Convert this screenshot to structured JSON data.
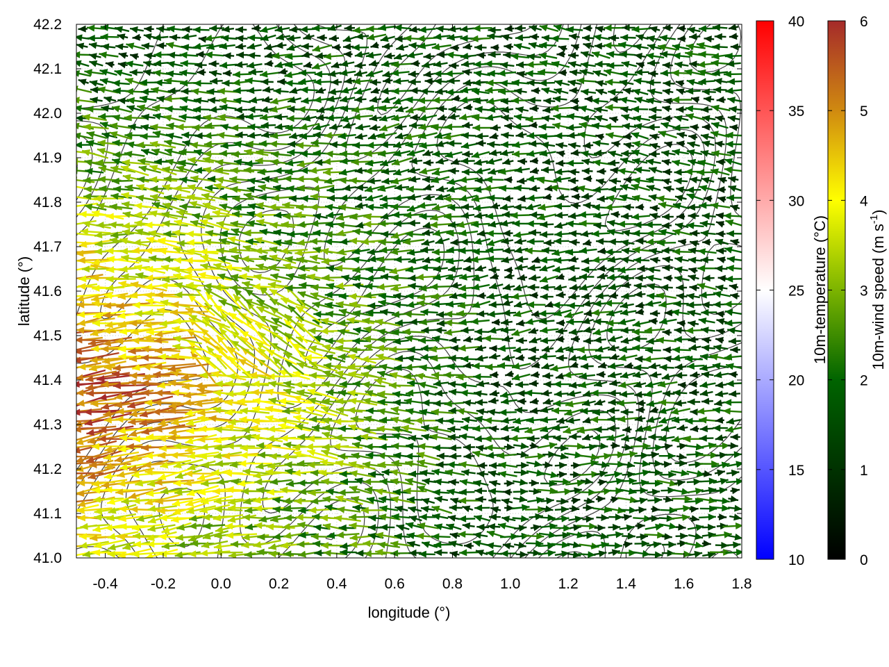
{
  "chart_data": {
    "type": "vector-field",
    "xlabel": "longitude (°)",
    "ylabel": "latitude (°)",
    "xlim": [
      -0.5,
      1.8
    ],
    "ylim": [
      41.0,
      42.2
    ],
    "x_ticks": [
      "-0.4",
      "-0.2",
      "0.0",
      "0.2",
      "0.4",
      "0.6",
      "0.8",
      "1.0",
      "1.2",
      "1.4",
      "1.6",
      "1.8"
    ],
    "y_ticks": [
      "41.0",
      "41.1",
      "41.2",
      "41.3",
      "41.4",
      "41.5",
      "41.6",
      "41.7",
      "41.8",
      "41.9",
      "42.0",
      "42.1",
      "42.2"
    ],
    "grid": true,
    "colorbars": [
      {
        "label": "10m-temperature (°C)",
        "range": [
          10,
          40
        ],
        "ticks": [
          "10",
          "15",
          "20",
          "25",
          "30",
          "35",
          "40"
        ],
        "colors": [
          "#0000ff",
          "#ffffff",
          "#ff0000"
        ]
      },
      {
        "label_main": "10m-wind speed (m s",
        "label_sup": "-1",
        "label_end": ")",
        "range": [
          0,
          6
        ],
        "ticks": [
          "0",
          "1",
          "2",
          "3",
          "4",
          "5",
          "6"
        ],
        "colors": [
          "#000000",
          "#006400",
          "#7cb400",
          "#ffff00",
          "#d08a10",
          "#a52a2a"
        ]
      }
    ],
    "wind_field": {
      "description_values": "approximate wind vectors (u, v in m/s) on a regular grid",
      "lon_start": -0.48,
      "lon_step": 0.046,
      "lon_count": 50,
      "lat_start": 41.01,
      "lat_step": 0.02,
      "lat_count": 60,
      "dominant_direction": "westward",
      "speed_max": 6
    },
    "contours": {
      "color": "#404040",
      "kind": "terrain elevation isolines"
    }
  }
}
